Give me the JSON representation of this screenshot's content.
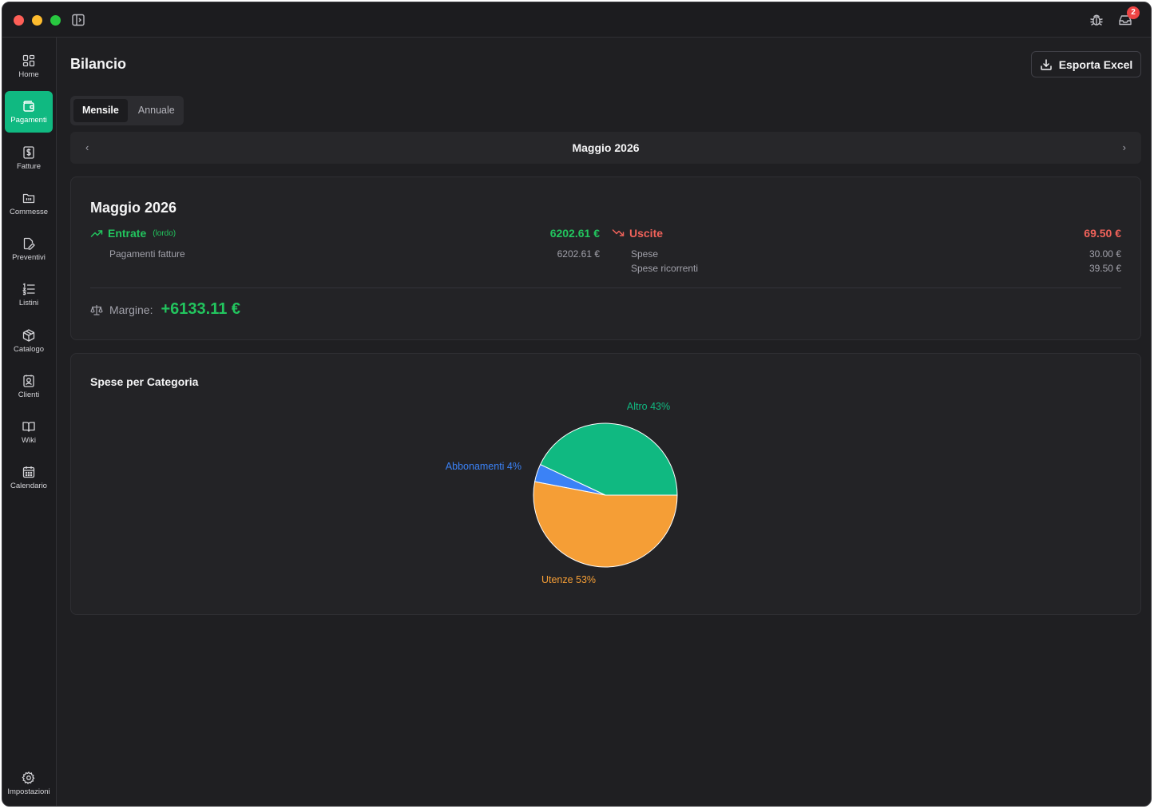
{
  "titlebar": {
    "notification_count": "2"
  },
  "sidebar": {
    "items": [
      {
        "label": "Home",
        "icon": "grid-icon",
        "active": false
      },
      {
        "label": "Pagamenti",
        "icon": "wallet-icon",
        "active": true
      },
      {
        "label": "Fatture",
        "icon": "invoice-dollar-icon",
        "active": false
      },
      {
        "label": "Commesse",
        "icon": "folder-icon",
        "active": false
      },
      {
        "label": "Preventivi",
        "icon": "file-edit-icon",
        "active": false
      },
      {
        "label": "Listini",
        "icon": "list-ordered-icon",
        "active": false
      },
      {
        "label": "Catalogo",
        "icon": "package-icon",
        "active": false
      },
      {
        "label": "Clienti",
        "icon": "contact-icon",
        "active": false
      },
      {
        "label": "Wiki",
        "icon": "book-icon",
        "active": false
      },
      {
        "label": "Calendario",
        "icon": "calendar-icon",
        "active": false
      }
    ],
    "settings_label": "Impostazioni"
  },
  "header": {
    "title": "Bilancio",
    "export_label": "Esporta Excel"
  },
  "tabs": [
    {
      "label": "Mensile",
      "active": true
    },
    {
      "label": "Annuale",
      "active": false
    }
  ],
  "period": {
    "label": "Maggio 2026",
    "prev_icon": "chevron-left-icon",
    "next_icon": "chevron-right-icon"
  },
  "summary": {
    "title": "Maggio 2026",
    "income": {
      "label": "Entrate",
      "sublabel": "(lordo)",
      "total": "6202.61 €",
      "rows": [
        {
          "label": "Pagamenti fatture",
          "value": "6202.61 €"
        }
      ]
    },
    "expenses": {
      "label": "Uscite",
      "total": "69.50 €",
      "rows": [
        {
          "label": "Spese",
          "value": "30.00 €"
        },
        {
          "label": "Spese ricorrenti",
          "value": "39.50 €"
        }
      ]
    },
    "margin": {
      "label": "Margine:",
      "value": "+6133.11 €"
    }
  },
  "colors": {
    "accent": "#10b981",
    "income": "#22c55e",
    "expense": "#f0625a"
  },
  "chart_data": {
    "type": "pie",
    "title": "Spese per Categoria",
    "slices": [
      {
        "label": "Altro 43%",
        "name": "Altro",
        "value": 43,
        "color": "#10b981"
      },
      {
        "label": "Abbonamenti 4%",
        "name": "Abbonamenti",
        "value": 4,
        "color": "#3b82f6"
      },
      {
        "label": "Utenze 53%",
        "name": "Utenze",
        "value": 53,
        "color": "#f59e36"
      }
    ]
  }
}
